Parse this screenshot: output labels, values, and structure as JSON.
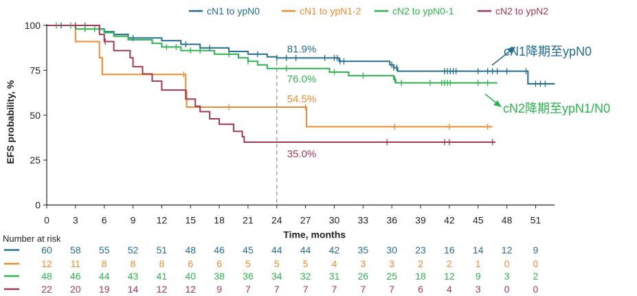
{
  "chart_data": {
    "type": "line",
    "subtype": "kaplan-meier-step",
    "xlabel": "Time, months",
    "ylabel": "EFS probability, %",
    "xlim": [
      0,
      53
    ],
    "ylim": [
      0,
      100
    ],
    "x_ticks": [
      0,
      3,
      6,
      9,
      12,
      15,
      18,
      21,
      24,
      27,
      30,
      33,
      36,
      39,
      42,
      45,
      48,
      51
    ],
    "y_ticks": [
      0,
      25,
      50,
      75,
      100
    ],
    "grid": false,
    "legend_position": "top",
    "reference_line": {
      "x": 24,
      "style": "dashed"
    },
    "series": [
      {
        "name": "cN1 to ypN0",
        "color": "#236c8e",
        "steps": [
          [
            0,
            100
          ],
          [
            5.5,
            98
          ],
          [
            6,
            96.5
          ],
          [
            7,
            95
          ],
          [
            8.5,
            93
          ],
          [
            12,
            91.5
          ],
          [
            14,
            89.5
          ],
          [
            16,
            87.5
          ],
          [
            19,
            85.5
          ],
          [
            21,
            84
          ],
          [
            23,
            82.5
          ],
          [
            24,
            81.9
          ],
          [
            30.5,
            80
          ],
          [
            35.8,
            78
          ],
          [
            36.2,
            76.5
          ],
          [
            36.6,
            74.5
          ],
          [
            50,
            74.5
          ],
          [
            50.2,
            67.5
          ],
          [
            53,
            67.5
          ]
        ],
        "censor_x": [
          1.5,
          3,
          4,
          9,
          14.5,
          16,
          17,
          19,
          22,
          24,
          25,
          26,
          29,
          30,
          30.3,
          30.6,
          31,
          36,
          36.2,
          36.5,
          41.5,
          41.8,
          42.1,
          42.4,
          42.7,
          45,
          46,
          46.5,
          47,
          48,
          50,
          51,
          51.5,
          52
        ]
      },
      {
        "name": "cN1 to ypN1-2",
        "color": "#ee8a2e",
        "steps": [
          [
            0,
            100
          ],
          [
            3,
            91
          ],
          [
            5.5,
            82
          ],
          [
            5.8,
            72.7
          ],
          [
            14.5,
            63.6
          ],
          [
            14.6,
            54.5
          ],
          [
            27,
            54.5
          ],
          [
            27.1,
            43.6
          ],
          [
            46.5,
            43.6
          ]
        ],
        "censor_x": [
          14.3,
          19,
          27,
          36.3,
          42,
          46
        ]
      },
      {
        "name": "cN2 to ypN0-1",
        "color": "#2bb24d",
        "steps": [
          [
            0,
            100
          ],
          [
            3,
            98
          ],
          [
            6,
            96
          ],
          [
            7,
            94
          ],
          [
            8.5,
            92
          ],
          [
            11,
            90
          ],
          [
            12,
            88
          ],
          [
            14,
            86
          ],
          [
            17.5,
            84
          ],
          [
            20,
            82
          ],
          [
            21,
            80
          ],
          [
            22,
            78
          ],
          [
            23,
            76
          ],
          [
            24,
            76
          ],
          [
            29.5,
            74
          ],
          [
            31.5,
            72
          ],
          [
            36.2,
            70
          ],
          [
            36.4,
            68
          ],
          [
            47,
            68
          ]
        ],
        "censor_x": [
          1,
          2.5,
          4,
          5,
          12.5,
          13.5,
          15,
          16,
          19,
          21,
          25,
          30,
          33,
          36.3,
          37,
          40,
          41.2,
          41.5,
          41.8,
          42.1,
          45,
          46
        ]
      },
      {
        "name": "cN2 to ypN2",
        "color": "#a0384f",
        "steps": [
          [
            0,
            100
          ],
          [
            5.5,
            95
          ],
          [
            6,
            91
          ],
          [
            7,
            86
          ],
          [
            8.7,
            82
          ],
          [
            9,
            77
          ],
          [
            10,
            73
          ],
          [
            11,
            69
          ],
          [
            12,
            64
          ],
          [
            14.5,
            59
          ],
          [
            15.5,
            55
          ],
          [
            16,
            52
          ],
          [
            17,
            48
          ],
          [
            18,
            45
          ],
          [
            19.5,
            41
          ],
          [
            20.4,
            38
          ],
          [
            20.6,
            35
          ],
          [
            46.8,
            35
          ]
        ],
        "censor_x": [
          3,
          6.1,
          35.5,
          41.5,
          42,
          46.5
        ]
      }
    ],
    "value_labels": [
      {
        "text": "81.9%",
        "color": "#236c8e",
        "x": 24.5,
        "y": 81.9
      },
      {
        "text": "76.0%",
        "color": "#2bb24d",
        "x": 24.5,
        "y": 76.0
      },
      {
        "text": "54.5%",
        "color": "#ee8a2e",
        "x": 24.5,
        "y": 54.5
      },
      {
        "text": "35.0%",
        "color": "#a0384f",
        "x": 24.5,
        "y": 35.0
      }
    ],
    "annotations": [
      {
        "text": "cN1降期至ypN0",
        "color": "#236c8e"
      },
      {
        "text": "cN2降期至ypN1/N0",
        "color": "#2bb24d"
      }
    ],
    "risk_table": {
      "title": "Number at risk",
      "times": [
        0,
        3,
        6,
        9,
        12,
        15,
        18,
        21,
        24,
        27,
        30,
        33,
        36,
        39,
        42,
        45,
        48,
        51
      ],
      "rows": [
        {
          "color": "#236c8e",
          "counts": [
            60,
            58,
            55,
            52,
            51,
            48,
            46,
            45,
            44,
            44,
            42,
            35,
            30,
            23,
            16,
            14,
            12,
            9
          ]
        },
        {
          "color": "#ee8a2e",
          "counts": [
            12,
            11,
            8,
            8,
            8,
            6,
            6,
            5,
            5,
            5,
            4,
            3,
            3,
            2,
            2,
            1,
            0,
            0
          ]
        },
        {
          "color": "#2bb24d",
          "counts": [
            48,
            46,
            44,
            43,
            41,
            40,
            38,
            36,
            34,
            32,
            31,
            26,
            25,
            18,
            12,
            9,
            3,
            2
          ]
        },
        {
          "color": "#a0384f",
          "counts": [
            22,
            20,
            19,
            14,
            12,
            12,
            9,
            7,
            7,
            7,
            7,
            7,
            7,
            6,
            4,
            3,
            0,
            0
          ]
        }
      ]
    }
  }
}
